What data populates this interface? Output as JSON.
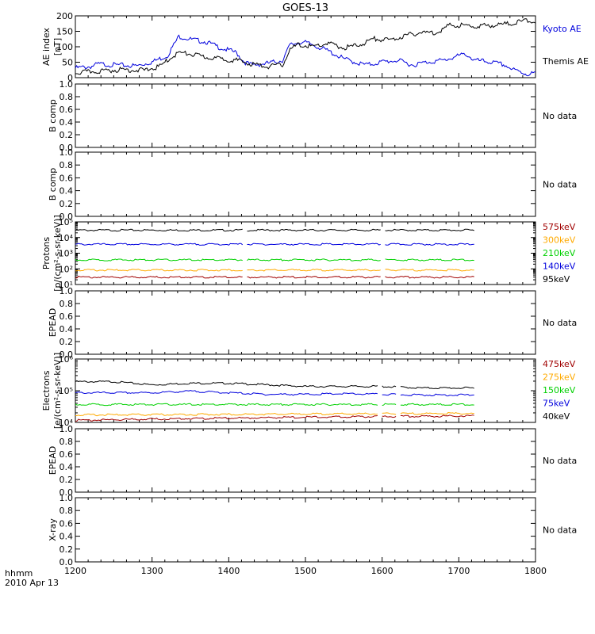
{
  "title": "GOES-13",
  "x_axis": {
    "label_hhmm": "hhmm",
    "label_date": "2010 Apr 13",
    "ticks": [
      "1200",
      "1300",
      "1400",
      "1500",
      "1600",
      "1700",
      "1800"
    ]
  },
  "no_data_text": "No data",
  "colors": {
    "black": "#000000",
    "blue": "#0000dd",
    "green": "#00d000",
    "orange": "#ffaa00",
    "darkred": "#a00000"
  },
  "chart_data": [
    {
      "id": "ae",
      "type": "line",
      "ylabel": [
        "AE index",
        "[nT]"
      ],
      "ylim": [
        0,
        200
      ],
      "yticks": [
        "0",
        "50",
        "100",
        "150",
        "200"
      ],
      "x_range": [
        12.0,
        18.0
      ],
      "series": [
        {
          "name": "Kyoto AE",
          "color": "#0000dd",
          "x": [
            12.0,
            12.2,
            12.3,
            12.5,
            12.8,
            13.0,
            13.2,
            13.35,
            13.5,
            13.7,
            13.9,
            14.1,
            14.2,
            14.3,
            14.5,
            14.7,
            14.8,
            14.95,
            15.1,
            15.3,
            15.5,
            15.7,
            15.8,
            16.0,
            16.2,
            16.4,
            16.6,
            16.8,
            17.0,
            17.1,
            17.2,
            17.4,
            17.6,
            17.7,
            17.9,
            18.0
          ],
          "y": [
            35,
            40,
            48,
            45,
            42,
            55,
            75,
            138,
            128,
            120,
            100,
            85,
            55,
            45,
            50,
            60,
            110,
            120,
            110,
            90,
            65,
            50,
            45,
            55,
            60,
            45,
            55,
            60,
            75,
            80,
            60,
            55,
            45,
            30,
            15,
            20
          ]
        },
        {
          "name": "Themis AE",
          "color": "#000000",
          "x": [
            12.0,
            12.3,
            12.6,
            12.9,
            13.1,
            13.25,
            13.35,
            13.5,
            13.7,
            13.9,
            14.1,
            14.3,
            14.5,
            14.7,
            14.8,
            14.9,
            15.1,
            15.3,
            15.5,
            15.7,
            15.9,
            16.1,
            16.3,
            16.5,
            16.7,
            16.9,
            17.2,
            17.5,
            17.7,
            17.9,
            18.0
          ],
          "y": [
            20,
            25,
            30,
            28,
            40,
            70,
            85,
            80,
            70,
            65,
            60,
            48,
            40,
            45,
            95,
            110,
            105,
            115,
            100,
            110,
            130,
            125,
            140,
            150,
            150,
            175,
            170,
            175,
            180,
            190,
            185
          ]
        }
      ]
    },
    {
      "id": "b1",
      "type": "line",
      "ylabel": [
        "B comp"
      ],
      "ylim": [
        0,
        1
      ],
      "yticks": [
        "0.0",
        "0.2",
        "0.4",
        "0.6",
        "0.8",
        "1.0"
      ],
      "series": []
    },
    {
      "id": "b2",
      "type": "line",
      "ylabel": [
        "B comp"
      ],
      "ylim": [
        0,
        1
      ],
      "yticks": [
        "0.0",
        "0.2",
        "0.4",
        "0.6",
        "0.8",
        "1.0"
      ],
      "series": []
    },
    {
      "id": "protons",
      "type": "line",
      "scale": "log",
      "ylabel": [
        "Protons",
        "[p/(cm²-s-sr-keV)]"
      ],
      "ylim_exp": [
        1,
        5
      ],
      "yticks": [
        "10¹",
        "10²",
        "10³",
        "10⁴",
        "10⁵"
      ],
      "x_range": [
        12.0,
        17.2
      ],
      "gaps": [
        [
          14.2,
          14.23
        ],
        [
          16.0,
          16.03
        ]
      ],
      "series": [
        {
          "name": "95keV",
          "color": "#000000",
          "log10": 4.5
        },
        {
          "name": "140keV",
          "color": "#0000dd",
          "log10": 3.6
        },
        {
          "name": "210keV",
          "color": "#00d000",
          "log10": 2.6
        },
        {
          "name": "300keV",
          "color": "#ffaa00",
          "log10": 1.95
        },
        {
          "name": "575keV",
          "color": "#a00000",
          "log10": 1.5
        }
      ],
      "legend_order": [
        "575keV",
        "300keV",
        "210keV",
        "140keV",
        "95keV"
      ]
    },
    {
      "id": "epead1",
      "type": "line",
      "ylabel": [
        "EPEAD"
      ],
      "ylim": [
        0,
        1
      ],
      "yticks": [
        "0.0",
        "0.2",
        "0.4",
        "0.6",
        "0.8",
        "1.0"
      ],
      "series": []
    },
    {
      "id": "electrons",
      "type": "line",
      "scale": "log",
      "ylabel": [
        "Electrons",
        "[e/(cm²-s-sr-keV)]"
      ],
      "ylim_exp": [
        4,
        6
      ],
      "yticks": [
        "10⁴",
        "10⁵",
        "10⁶"
      ],
      "x_range": [
        12.0,
        17.2
      ],
      "gaps": [
        [
          15.95,
          15.98
        ],
        [
          16.2,
          16.23
        ]
      ],
      "series": [
        {
          "name": "40keV",
          "color": "#000000",
          "x": [
            12.0,
            12.5,
            13.0,
            13.5,
            14.0,
            14.5,
            15.0,
            15.5,
            16.0,
            16.5,
            17.0,
            17.2
          ],
          "log10": [
            5.3,
            5.3,
            5.2,
            5.25,
            5.25,
            5.2,
            5.15,
            5.15,
            5.15,
            5.1,
            5.1,
            5.1
          ]
        },
        {
          "name": "75keV",
          "color": "#0000dd",
          "x": [
            12.0,
            12.5,
            13.0,
            13.5,
            14.0,
            14.5,
            15.0,
            15.5,
            16.0,
            16.5,
            17.0,
            17.2
          ],
          "log10": [
            4.95,
            4.95,
            4.95,
            5.0,
            4.95,
            4.9,
            4.9,
            4.92,
            4.9,
            4.88,
            4.88,
            4.88
          ]
        },
        {
          "name": "150keV",
          "color": "#00d000",
          "x": [
            12.0,
            17.2
          ],
          "log10": [
            4.58,
            4.58
          ]
        },
        {
          "name": "275keV",
          "color": "#ffaa00",
          "x": [
            12.0,
            17.2
          ],
          "log10": [
            4.25,
            4.3
          ]
        },
        {
          "name": "475keV",
          "color": "#a00000",
          "x": [
            12.0,
            13.0,
            14.0,
            15.0,
            16.0,
            17.2
          ],
          "log10": [
            4.08,
            4.12,
            4.15,
            4.18,
            4.2,
            4.22
          ]
        }
      ],
      "legend_order": [
        "475keV",
        "275keV",
        "150keV",
        "75keV",
        "40keV"
      ]
    },
    {
      "id": "epead2",
      "type": "line",
      "ylabel": [
        "EPEAD"
      ],
      "ylim": [
        0,
        1
      ],
      "yticks": [
        "0.0",
        "0.2",
        "0.4",
        "0.6",
        "0.8",
        "1.0"
      ],
      "series": []
    },
    {
      "id": "xray",
      "type": "line",
      "ylabel": [
        "X-ray"
      ],
      "ylim": [
        0,
        1
      ],
      "yticks": [
        "0.0",
        "0.2",
        "0.4",
        "0.6",
        "0.8",
        "1.0"
      ],
      "series": []
    }
  ]
}
